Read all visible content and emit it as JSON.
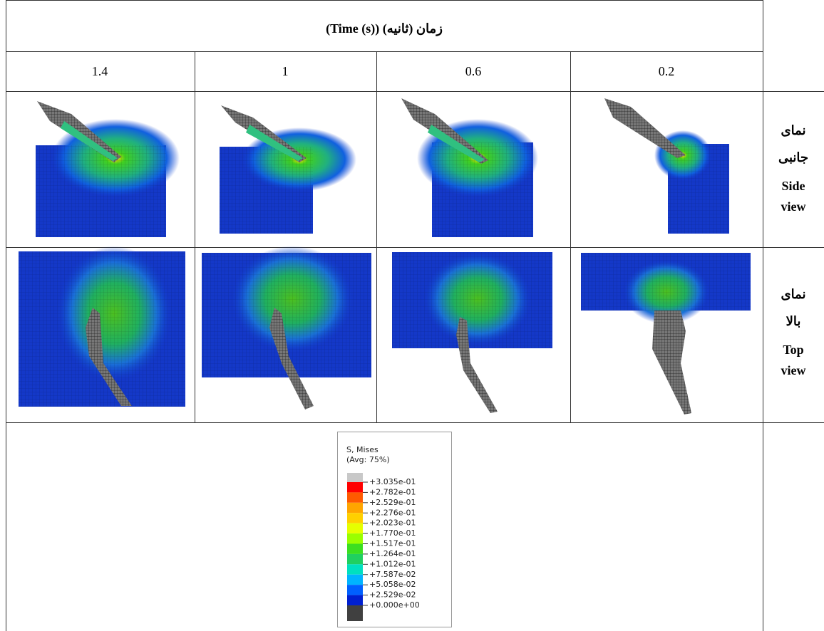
{
  "header": {
    "title": "زمان (ثانیه) (Time (s))"
  },
  "columns": [
    "1.4",
    "1",
    "0.6",
    "0.2"
  ],
  "rows": [
    {
      "label_fa": "نمای جانبی",
      "label_en_1": "Side",
      "label_en_2": "view"
    },
    {
      "label_fa": "نمای بالا",
      "label_en_1": "Top",
      "label_en_2": "view"
    }
  ],
  "legend": {
    "title": "S, Mises",
    "subtitle": "(Avg: 75%)",
    "labels": [
      "+3.035e-01",
      "+2.782e-01",
      "+2.529e-01",
      "+2.276e-01",
      "+2.023e-01",
      "+1.770e-01",
      "+1.517e-01",
      "+1.264e-01",
      "+1.012e-01",
      "+7.587e-02",
      "+5.058e-02",
      "+2.529e-02",
      "+0.000e+00"
    ],
    "colors": [
      "#ff0000",
      "#ff5a00",
      "#ffa500",
      "#ffd000",
      "#e6ff00",
      "#9aff00",
      "#3cdf20",
      "#20d060",
      "#00e0c0",
      "#00b4ff",
      "#0060ff",
      "#0020d0"
    ]
  }
}
